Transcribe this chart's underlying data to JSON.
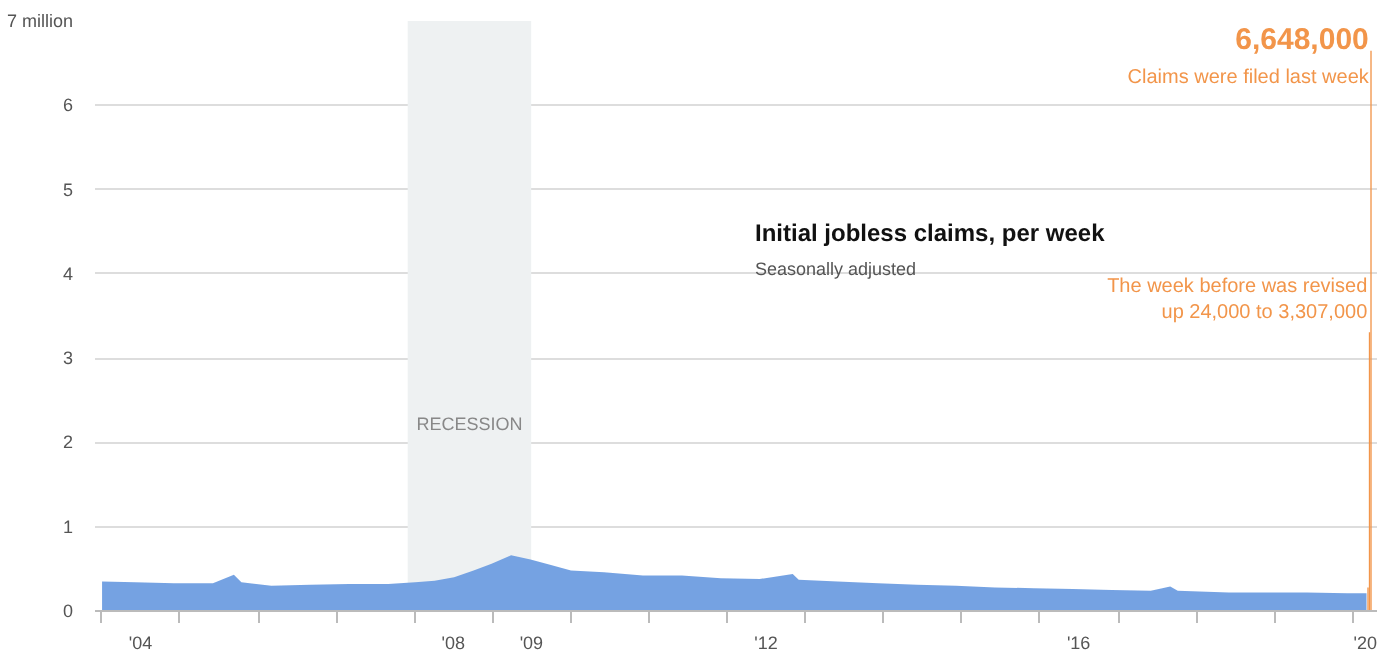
{
  "chart_data": {
    "type": "area",
    "title": "Initial jobless claims, per week",
    "subtitle": "Seasonally adjusted",
    "x": [
      "2004-01-03",
      "2004-06-05",
      "2004-12-04",
      "2005-06-04",
      "2005-09-10",
      "2005-10-15",
      "2006-03-04",
      "2006-09-02",
      "2007-03-03",
      "2007-09-01",
      "2008-01-05",
      "2008-04-05",
      "2008-07-05",
      "2008-10-04",
      "2008-12-27",
      "2009-03-28",
      "2009-06-27",
      "2009-09-26",
      "2010-01-02",
      "2010-06-05",
      "2010-12-04",
      "2011-06-04",
      "2011-12-03",
      "2012-06-02",
      "2012-11-03",
      "2012-12-01",
      "2013-06-01",
      "2013-12-07",
      "2014-06-07",
      "2014-12-06",
      "2015-06-06",
      "2015-12-05",
      "2016-06-04",
      "2016-12-03",
      "2017-06-03",
      "2017-09-02",
      "2017-10-07",
      "2018-06-02",
      "2018-12-01",
      "2019-06-01",
      "2019-12-07",
      "2020-03-07"
    ],
    "series": [
      {
        "color": "#6e9de0",
        "values": [
          0.35,
          0.34,
          0.33,
          0.33,
          0.43,
          0.34,
          0.3,
          0.31,
          0.32,
          0.32,
          0.34,
          0.36,
          0.4,
          0.48,
          0.56,
          0.66,
          0.61,
          0.55,
          0.48,
          0.46,
          0.42,
          0.42,
          0.39,
          0.38,
          0.44,
          0.37,
          0.35,
          0.33,
          0.31,
          0.3,
          0.28,
          0.27,
          0.26,
          0.25,
          0.24,
          0.29,
          0.24,
          0.22,
          0.22,
          0.22,
          0.21,
          0.21
        ]
      },
      {
        "type": "bar",
        "color": "#f2954a",
        "x": [
          "2020-03-14",
          "2020-03-21",
          "2020-03-28"
        ],
        "values": [
          0.28,
          3.307,
          6.648
        ]
      }
    ],
    "ylim": [
      0,
      7
    ],
    "yticks": [
      0,
      1,
      2,
      3,
      4,
      5,
      6,
      {
        "value": 7,
        "label": "7 million"
      }
    ],
    "xlim": [
      "2003-12-01",
      "2020-04-25"
    ],
    "xticks": [
      {
        "value": "2004-01-01",
        "label": null
      },
      {
        "value": "2004-07-01",
        "label": "'04"
      },
      {
        "value": "2005-01-01",
        "label": null
      },
      {
        "value": "2006-01-01",
        "label": null
      },
      {
        "value": "2007-01-01",
        "label": null
      },
      {
        "value": "2008-01-01",
        "label": null
      },
      {
        "value": "2008-07-01",
        "label": "'08"
      },
      {
        "value": "2009-01-01",
        "label": null
      },
      {
        "value": "2009-07-01",
        "label": "'09"
      },
      {
        "value": "2010-01-01",
        "label": null
      },
      {
        "value": "2011-01-01",
        "label": null
      },
      {
        "value": "2012-01-01",
        "label": null
      },
      {
        "value": "2012-07-01",
        "label": "'12"
      },
      {
        "value": "2013-01-01",
        "label": null
      },
      {
        "value": "2014-01-01",
        "label": null
      },
      {
        "value": "2015-01-01",
        "label": null
      },
      {
        "value": "2016-01-01",
        "label": null
      },
      {
        "value": "2016-07-01",
        "label": "'16"
      },
      {
        "value": "2017-01-01",
        "label": null
      },
      {
        "value": "2018-01-01",
        "label": null
      },
      {
        "value": "2019-01-01",
        "label": null
      },
      {
        "value": "2020-01-01",
        "label": null
      },
      {
        "value": "2020-03-01",
        "label": "'20"
      }
    ],
    "grid": "y",
    "bands": [
      {
        "axis": "x",
        "from": "2007-12-01",
        "to": "2009-06-30",
        "label": "RECESSION",
        "color": "#eef1f2"
      }
    ],
    "annotations": [
      {
        "text": "6,648,000",
        "x": "2020-03-28",
        "y": 6.648
      },
      "Claims were filed last week",
      {
        "text": "The week before was revised\nup 24,000 to 3,307,000",
        "x": "2020-03-21",
        "y": 3.307
      }
    ]
  }
}
